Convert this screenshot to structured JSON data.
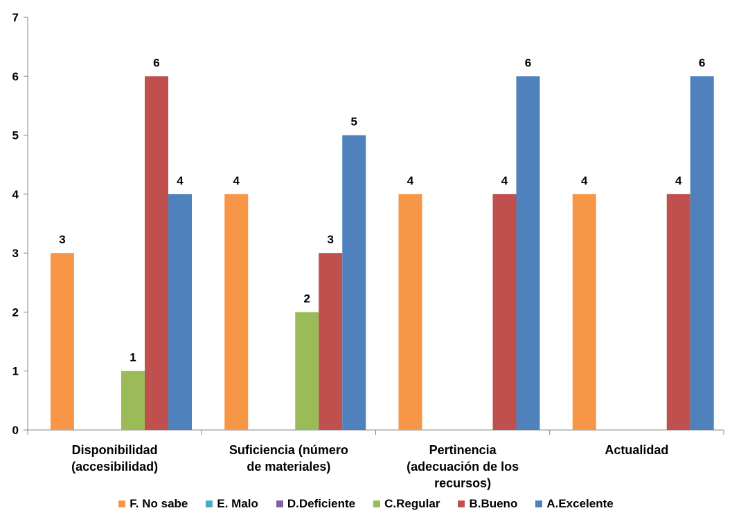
{
  "chart_data": {
    "type": "bar",
    "title": "",
    "xlabel": "",
    "ylabel": "",
    "ylim": [
      0,
      7
    ],
    "yticks": [
      0,
      1,
      2,
      3,
      4,
      5,
      6,
      7
    ],
    "grid": false,
    "legend_position": "bottom",
    "categories": [
      [
        "Disponibilidad",
        "(accesibilidad)"
      ],
      [
        "Suficiencia (número",
        "de materiales)"
      ],
      [
        "Pertinencia",
        "(adecuación de los",
        "recursos)"
      ],
      [
        "Actualidad"
      ]
    ],
    "series": [
      {
        "name": "F. No sabe",
        "color": "#f79646",
        "values": [
          3,
          4,
          4,
          4
        ]
      },
      {
        "name": "E. Malo",
        "color": "#4bacc6",
        "values": [
          0,
          0,
          0,
          0
        ]
      },
      {
        "name": "D.Deficiente",
        "color": "#8064a2",
        "values": [
          0,
          0,
          0,
          0
        ]
      },
      {
        "name": "C.Regular",
        "color": "#9bbb59",
        "values": [
          1,
          2,
          0,
          0
        ]
      },
      {
        "name": "B.Bueno",
        "color": "#c0504d",
        "values": [
          6,
          3,
          4,
          4
        ]
      },
      {
        "name": "A.Excelente",
        "color": "#4f81bd",
        "values": [
          4,
          5,
          6,
          6
        ]
      }
    ]
  }
}
